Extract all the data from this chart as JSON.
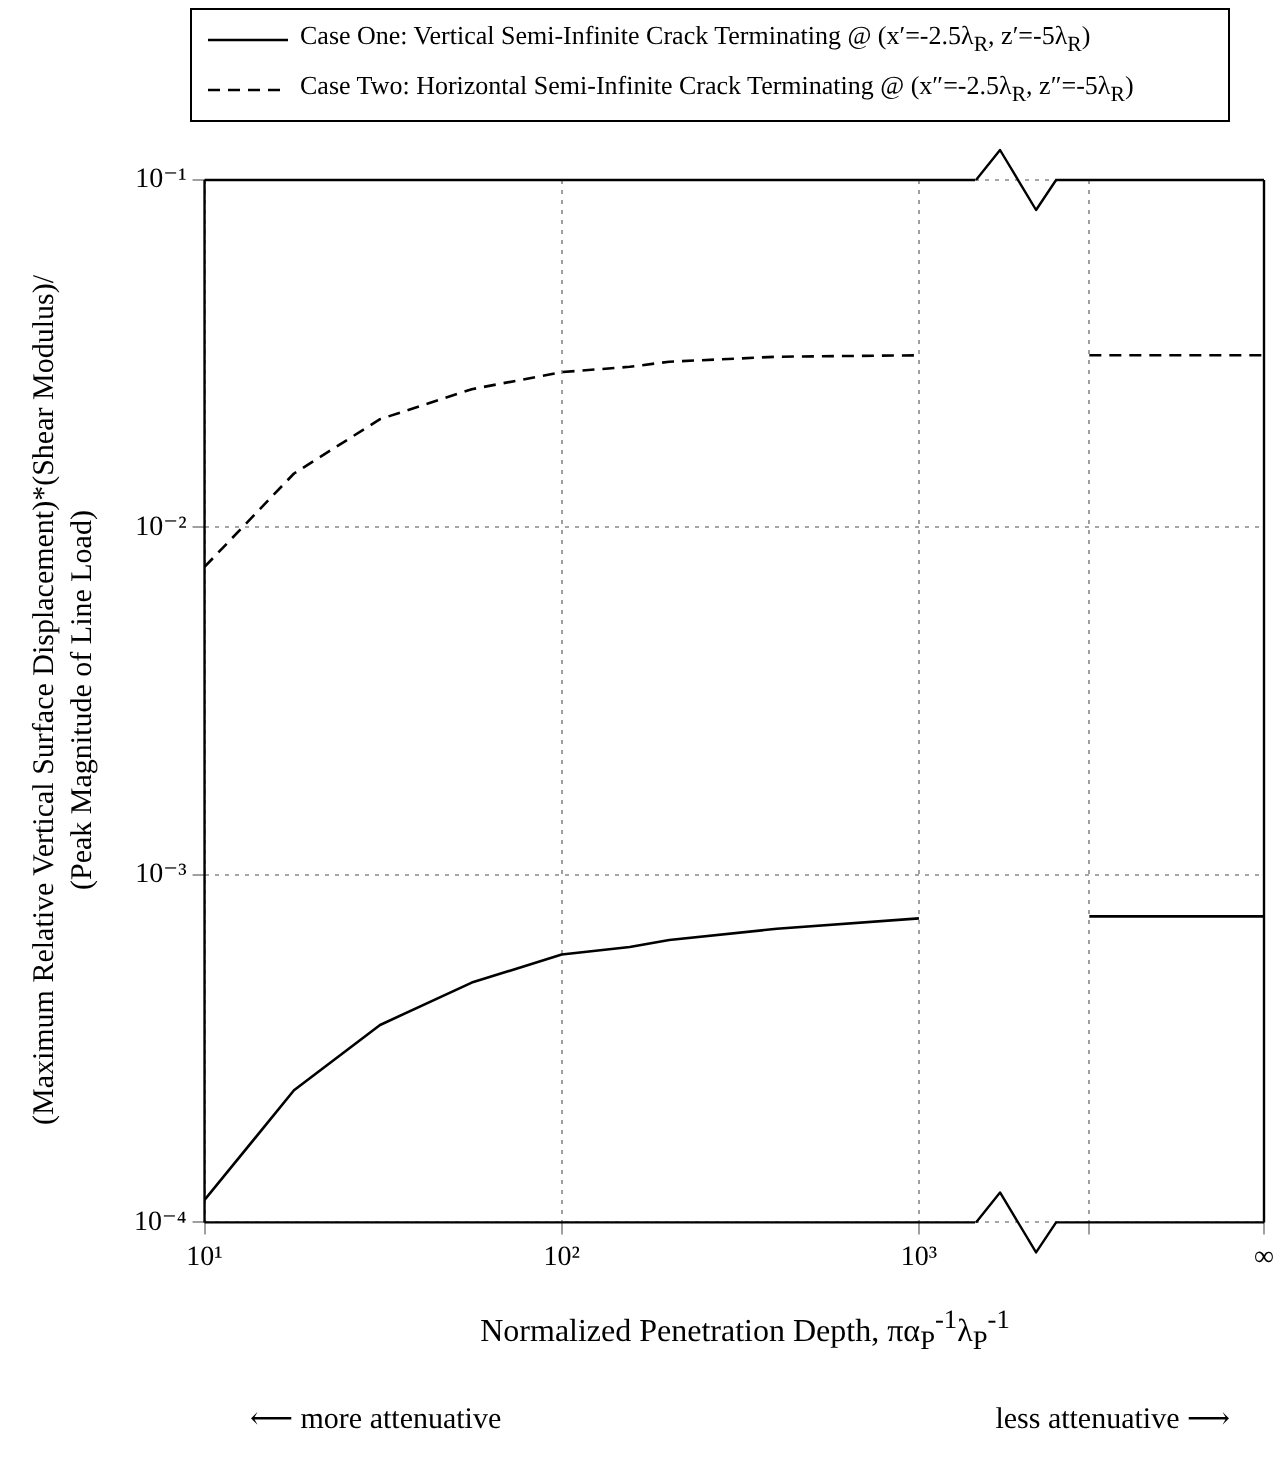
{
  "chart_data": {
    "type": "line",
    "xlabel": "Normalized Penetration Depth, πα$_{P}$$^{-1}$λ$_{P}$$^{-1}$",
    "ylabel": "(Maximum Relative Vertical Surface Displacement)*(Shear Modulus)/\n(Peak Magnitude of Line Load)",
    "log": "xy",
    "xlim": [
      10,
      9250
    ],
    "xticks": [
      {
        "value": 10,
        "label": "10¹"
      },
      {
        "value": 100,
        "label": "10²"
      },
      {
        "value": 1000,
        "label": "10³"
      },
      {
        "value": 3000,
        "label": null
      },
      {
        "value": 9250,
        "label": "∞"
      }
    ],
    "ylim": [
      0.0001,
      0.1
    ],
    "yticks": [
      {
        "value": 0.0001,
        "label": "10⁻⁴"
      },
      {
        "value": 0.001,
        "label": "10⁻³"
      },
      {
        "value": 0.01,
        "label": "10⁻²"
      },
      {
        "value": 0.1,
        "label": "10⁻¹"
      }
    ],
    "grid": true,
    "legend": "top",
    "series": [
      {
        "name": "Case One: Vertical Semi-Infinite Crack Terminating @ (x′=-2.5λ$_{R}$, z′=-5λ$_{R}$)",
        "color": "#000000",
        "line_style": "solid",
        "x": [
          10,
          17.8,
          31,
          56,
          100,
          155,
          200,
          400,
          1000,
          2000,
          3000,
          9250
        ],
        "values": [
          0.000116,
          0.00024,
          0.00037,
          0.00049,
          0.00059,
          0.00062,
          0.00065,
          0.0007,
          0.00075,
          null,
          0.00076,
          0.00076
        ]
      },
      {
        "name": "Case Two: Horizontal Semi-Infinite Crack Terminating @ (x″=-2.5λ$_{R}$, z″=-5λ$_{R}$)",
        "color": "#000000",
        "line_style": "dashed",
        "x": [
          10,
          17.8,
          31,
          56,
          100,
          155,
          200,
          400,
          1000,
          2000,
          3000,
          9250
        ],
        "values": [
          0.0077,
          0.0143,
          0.0205,
          0.025,
          0.028,
          0.029,
          0.03,
          0.031,
          0.0313,
          null,
          0.0313,
          0.0313
        ]
      }
    ],
    "annotations": [
      "⟵ more attenuative",
      "less attenuative ⟶"
    ]
  }
}
